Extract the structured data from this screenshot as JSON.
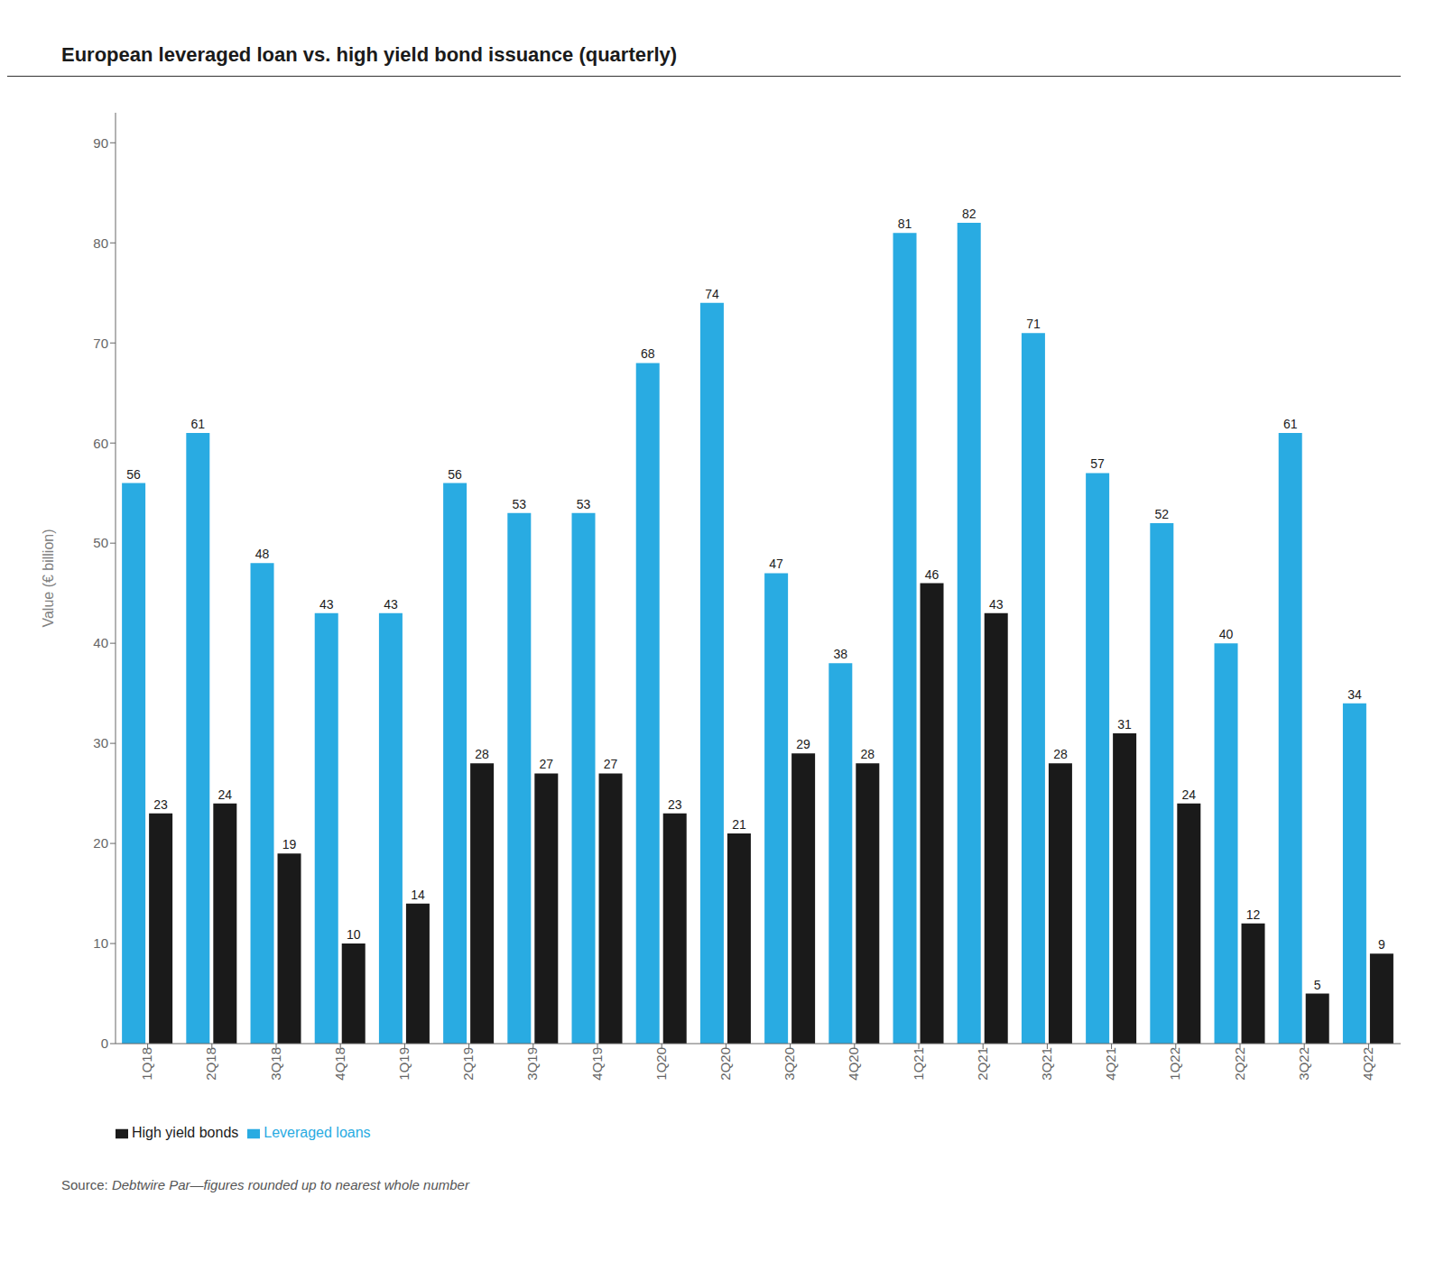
{
  "chart_data": {
    "type": "bar",
    "title": "European leveraged loan vs. high yield bond issuance (quarterly)",
    "ylabel": "Value (€ billion)",
    "categories": [
      "1Q18",
      "2Q18",
      "3Q18",
      "4Q18",
      "1Q19",
      "2Q19",
      "3Q19",
      "4Q19",
      "1Q20",
      "2Q20",
      "3Q20",
      "4Q20",
      "1Q21",
      "2Q21",
      "3Q21",
      "4Q21",
      "1Q22",
      "2Q22",
      "3Q22",
      "4Q22"
    ],
    "series": [
      {
        "name": "Leveraged loans",
        "color": "#29ABE2",
        "values": [
          56,
          61,
          48,
          43,
          43,
          56,
          53,
          53,
          68,
          74,
          47,
          38,
          81,
          82,
          71,
          57,
          52,
          40,
          61,
          34
        ]
      },
      {
        "name": "High yield bonds",
        "color": "#1a1a1a",
        "values": [
          23,
          24,
          19,
          10,
          14,
          28,
          27,
          27,
          23,
          21,
          29,
          28,
          46,
          43,
          28,
          31,
          24,
          12,
          5,
          9
        ]
      }
    ],
    "ylim": [
      0,
      93
    ],
    "yticks": [
      0,
      10,
      20,
      30,
      40,
      50,
      60,
      70,
      80,
      90
    ],
    "grid": false,
    "data_labels": true,
    "legend": "lower left",
    "annotations": [
      "Source: ",
      "Debtwire Par—figures rounded up to nearest whole number"
    ]
  }
}
